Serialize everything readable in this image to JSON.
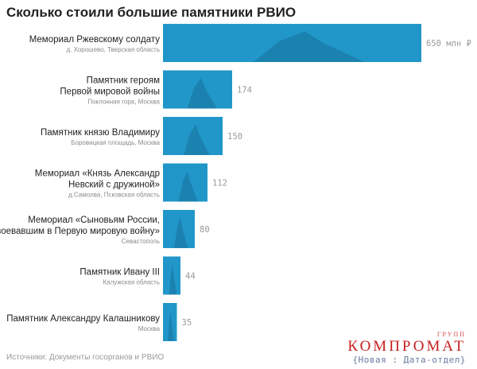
{
  "title": "Сколько стоили большие памятники РВИО",
  "source": "Источники: Документы госорганов и РВИО",
  "brand": {
    "top": "ГРУПП",
    "name": "КОМПРОМАТ",
    "sub": "{Новая : Дата-отдел}"
  },
  "colors": {
    "bar": "#2196c9",
    "bar_dark": "#156a92",
    "value": "#9a9a9a"
  },
  "chart_data": {
    "type": "bar",
    "orientation": "horizontal",
    "title": "Сколько стоили большие памятники РВИО",
    "unit": "млн ₽",
    "categories": [
      {
        "lines": [
          "Мемориал Ржевскому солдату"
        ],
        "sub": "д. Хорошево, Тверская область",
        "value": 650,
        "value_label": "650 млн ₽"
      },
      {
        "lines": [
          "Памятник героям",
          "Первой мировой войны"
        ],
        "sub": "Поклонная гора, Москва",
        "value": 174,
        "value_label": "174"
      },
      {
        "lines": [
          "Памятник князю Владимиру"
        ],
        "sub": "Боровицкая площадь, Москва",
        "value": 150,
        "value_label": "150"
      },
      {
        "lines": [
          "Мемориал «Князь Александр",
          "Невский с дружиной»"
        ],
        "sub": "д.Самолва, Псковская область",
        "value": 112,
        "value_label": "112"
      },
      {
        "lines": [
          "Мемориал «Сыновьям России,",
          "воевавшим в Первую мировую войну»"
        ],
        "sub": "Севастополь",
        "value": 80,
        "value_label": "80"
      },
      {
        "lines": [
          "Памятник Ивану III"
        ],
        "sub": "Калужская область",
        "value": 44,
        "value_label": "44"
      },
      {
        "lines": [
          "Памятник Александру Калашникову"
        ],
        "sub": "Москва",
        "value": 35,
        "value_label": "35"
      }
    ]
  }
}
